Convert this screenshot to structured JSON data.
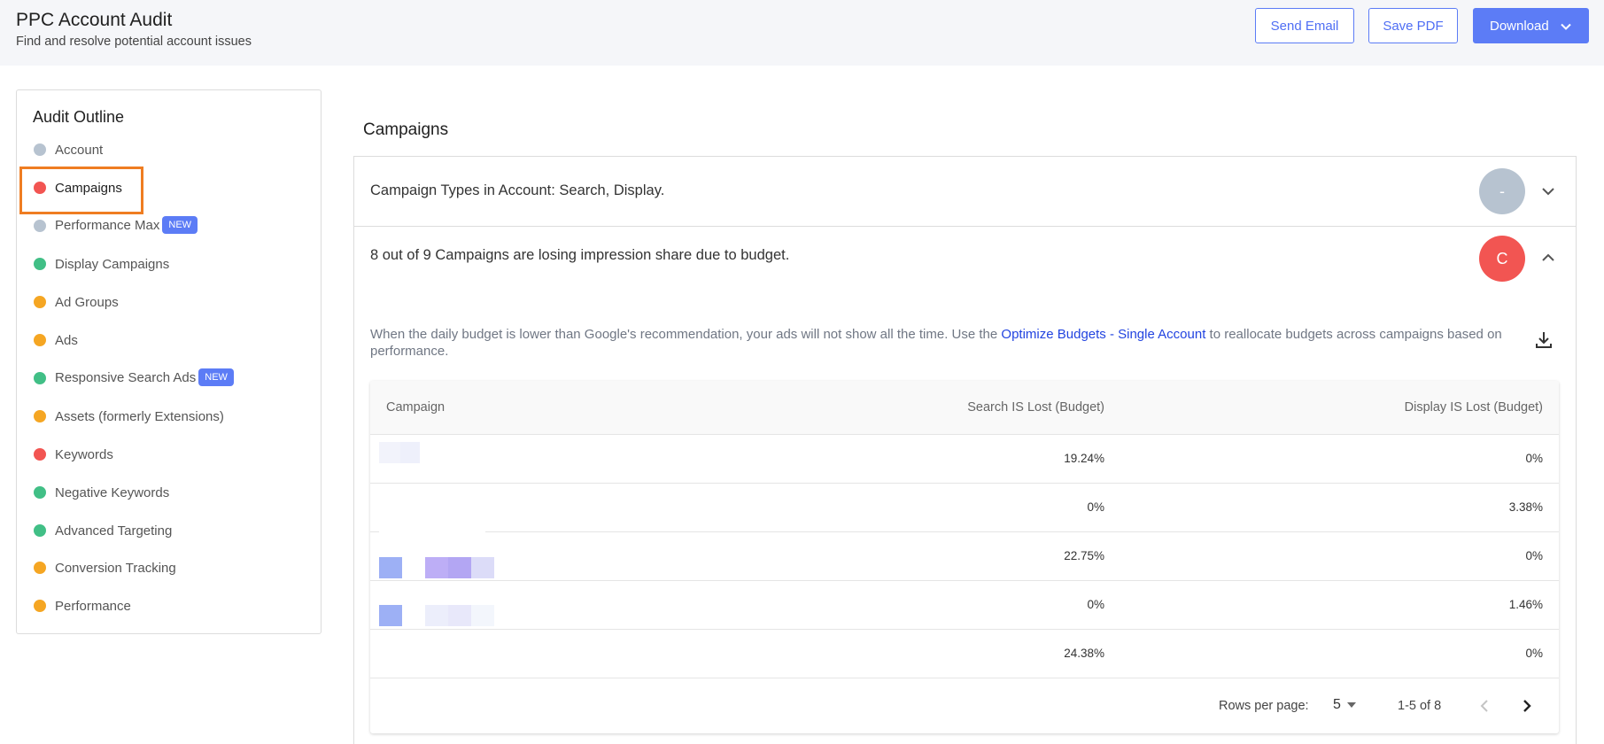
{
  "header": {
    "title": "PPC Account Audit",
    "subtitle": "Find and resolve potential account issues",
    "send_email": "Send Email",
    "save_pdf": "Save PDF",
    "download": "Download"
  },
  "sidebar": {
    "title": "Audit Outline",
    "items": [
      {
        "label": "Account",
        "color": "#b7c3d0"
      },
      {
        "label": "Campaigns",
        "color": "#f25552"
      },
      {
        "label": "Performance Max",
        "color": "#b7c3d0",
        "badge": "NEW"
      },
      {
        "label": "Display Campaigns",
        "color": "#41bf86"
      },
      {
        "label": "Ad Groups",
        "color": "#f5a623"
      },
      {
        "label": "Ads",
        "color": "#f5a623"
      },
      {
        "label": "Responsive Search Ads",
        "color": "#41bf86",
        "badge": "NEW"
      },
      {
        "label": "Assets (formerly Extensions)",
        "color": "#f5a623"
      },
      {
        "label": "Keywords",
        "color": "#f25552"
      },
      {
        "label": "Negative Keywords",
        "color": "#41bf86"
      },
      {
        "label": "Advanced Targeting",
        "color": "#41bf86"
      },
      {
        "label": "Conversion Tracking",
        "color": "#f5a623"
      },
      {
        "label": "Performance",
        "color": "#f5a623"
      }
    ]
  },
  "main": {
    "section_title": "Campaigns",
    "item1": {
      "text": "Campaign Types in Account: Search, Display.",
      "grade": "-"
    },
    "item2": {
      "text": "8 out of 9 Campaigns are losing impression share due to budget.",
      "grade": "C",
      "desc_before": "When the daily budget is lower than Google's recommendation, your ads will not show all the time. Use the ",
      "desc_link": "Optimize Budgets - Single Account",
      "desc_after": " to reallocate budgets across campaigns based on performance."
    },
    "table": {
      "columns": [
        "Campaign",
        "Search IS Lost (Budget)",
        "Display IS Lost (Budget)"
      ],
      "rows": [
        {
          "campaign": "",
          "search": "19.24%",
          "display": "0%"
        },
        {
          "campaign": "",
          "search": "0%",
          "display": "3.38%"
        },
        {
          "campaign": "",
          "search": "22.75%",
          "display": "0%"
        },
        {
          "campaign": "",
          "search": "0%",
          "display": "1.46%"
        },
        {
          "campaign": "",
          "search": "24.38%",
          "display": "0%"
        }
      ],
      "rows_per_page_label": "Rows per page:",
      "rows_per_page": "5",
      "range": "1-5 of 8"
    }
  }
}
